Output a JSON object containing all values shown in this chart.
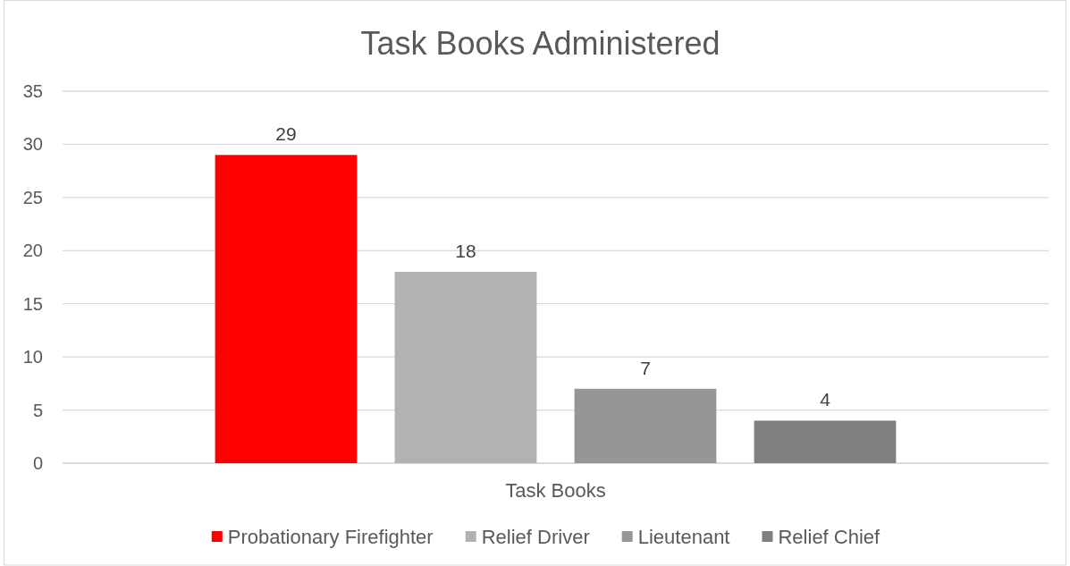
{
  "chart_data": {
    "type": "bar",
    "title": "Task Books Administered",
    "categories": [
      "Task Books"
    ],
    "series": [
      {
        "name": "Probationary Firefighter",
        "color": "#ff0000",
        "values": [
          29
        ]
      },
      {
        "name": "Relief Driver",
        "color": "#b2b2b2",
        "values": [
          18
        ]
      },
      {
        "name": "Lieutenant",
        "color": "#969696",
        "values": [
          7
        ]
      },
      {
        "name": "Relief Chief",
        "color": "#808080",
        "values": [
          4
        ]
      }
    ],
    "ylim": [
      0,
      35
    ],
    "yticks": [
      0,
      5,
      10,
      15,
      20,
      25,
      30,
      35
    ],
    "grid": "y",
    "legend": "bottom",
    "data_labels": true
  }
}
